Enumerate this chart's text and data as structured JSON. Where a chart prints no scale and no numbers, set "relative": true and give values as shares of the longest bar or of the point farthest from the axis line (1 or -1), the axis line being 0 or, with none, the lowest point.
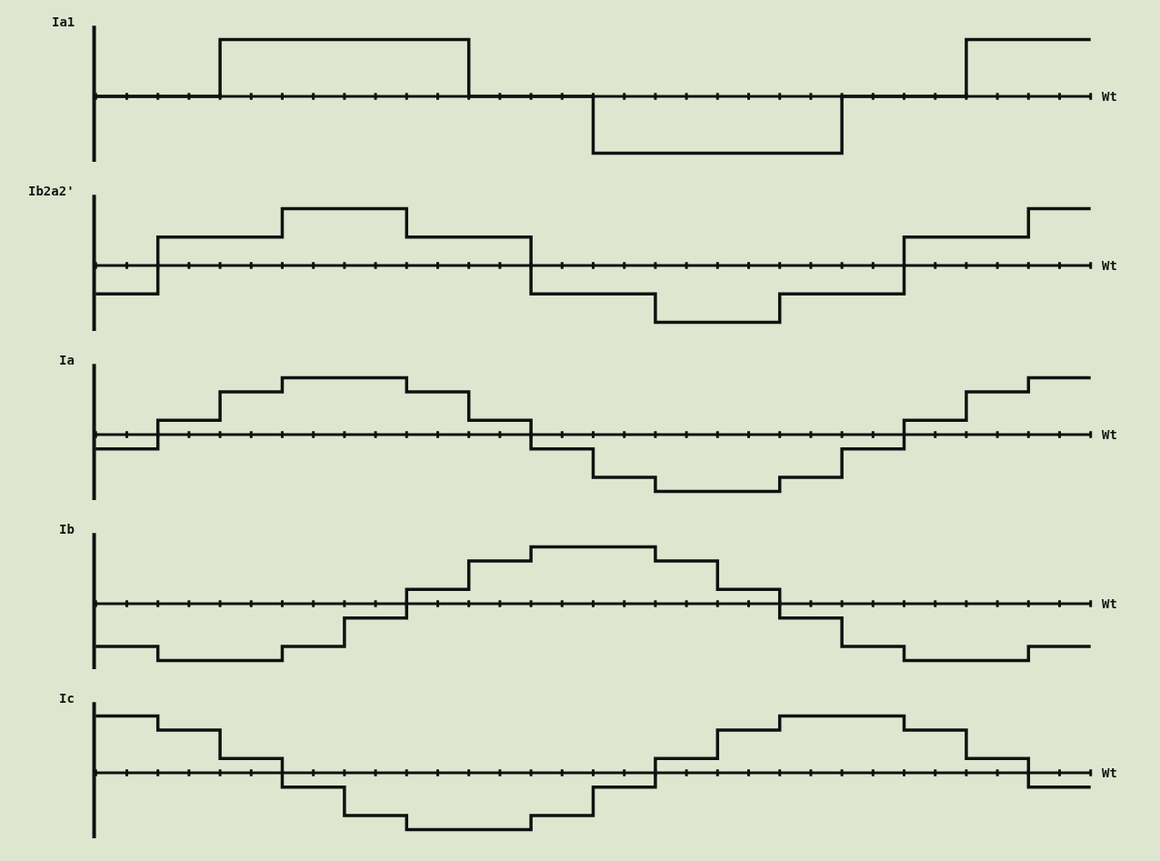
{
  "chart_data": [
    {
      "type": "step",
      "relative": true,
      "xlabel": "Wt",
      "ylabel": "Ia1",
      "marker": "none",
      "line_style": "solid",
      "categories": [
        null,
        null,
        null,
        null,
        null,
        null,
        null,
        null,
        null,
        null,
        null,
        null,
        null,
        null,
        null,
        null,
        null,
        null,
        null,
        null,
        null,
        null,
        null,
        null,
        null,
        null,
        null,
        null,
        null,
        null,
        null,
        null,
        null
      ],
      "series": [
        {
          "color": "#111111",
          "values": [
            0,
            0,
            0,
            0,
            1,
            1,
            1,
            1,
            1,
            1,
            1,
            1,
            0,
            0,
            0,
            0,
            -1,
            -1,
            -1,
            -1,
            -1,
            -1,
            -1,
            -1,
            0,
            0,
            0,
            0,
            1,
            1,
            1,
            1,
            1
          ]
        }
      ]
    },
    {
      "type": "step",
      "relative": true,
      "xlabel": "Wt",
      "ylabel": "Ib2a2'",
      "marker": "none",
      "line_style": "solid",
      "categories": [
        null,
        null,
        null,
        null,
        null,
        null,
        null,
        null,
        null,
        null,
        null,
        null,
        null,
        null,
        null,
        null,
        null,
        null,
        null,
        null,
        null,
        null,
        null,
        null,
        null,
        null,
        null,
        null,
        null,
        null,
        null,
        null,
        null
      ],
      "series": [
        {
          "color": "#111111",
          "values": [
            -0.5,
            -0.5,
            0.5,
            0.5,
            0.5,
            0.5,
            1,
            1,
            1,
            1,
            0.5,
            0.5,
            0.5,
            0.5,
            -0.5,
            -0.5,
            -0.5,
            -0.5,
            -1,
            -1,
            -1,
            -1,
            -0.5,
            -0.5,
            -0.5,
            -0.5,
            0.5,
            0.5,
            0.5,
            0.5,
            1,
            1,
            1
          ]
        }
      ]
    },
    {
      "type": "step",
      "relative": true,
      "xlabel": "Wt",
      "ylabel": "Ia",
      "marker": "none",
      "line_style": "solid",
      "categories": [
        null,
        null,
        null,
        null,
        null,
        null,
        null,
        null,
        null,
        null,
        null,
        null,
        null,
        null,
        null,
        null,
        null,
        null,
        null,
        null,
        null,
        null,
        null,
        null,
        null,
        null,
        null,
        null,
        null,
        null,
        null,
        null,
        null
      ],
      "series": [
        {
          "color": "#111111",
          "values": [
            -0.25,
            -0.25,
            0.25,
            0.25,
            0.75,
            0.75,
            1,
            1,
            1,
            1,
            0.75,
            0.75,
            0.25,
            0.25,
            -0.25,
            -0.25,
            -0.75,
            -0.75,
            -1,
            -1,
            -1,
            -1,
            -0.75,
            -0.75,
            -0.25,
            -0.25,
            0.25,
            0.25,
            0.75,
            0.75,
            1,
            1,
            1
          ]
        }
      ]
    },
    {
      "type": "step",
      "relative": true,
      "xlabel": "Wt",
      "ylabel": "Ib",
      "marker": "none",
      "line_style": "solid",
      "categories": [
        null,
        null,
        null,
        null,
        null,
        null,
        null,
        null,
        null,
        null,
        null,
        null,
        null,
        null,
        null,
        null,
        null,
        null,
        null,
        null,
        null,
        null,
        null,
        null,
        null,
        null,
        null,
        null,
        null,
        null,
        null,
        null,
        null
      ],
      "series": [
        {
          "color": "#111111",
          "values": [
            -0.75,
            -0.75,
            -1,
            -1,
            -1,
            -1,
            -0.75,
            -0.75,
            -0.25,
            -0.25,
            0.25,
            0.25,
            0.75,
            0.75,
            1,
            1,
            1,
            1,
            0.75,
            0.75,
            0.25,
            0.25,
            -0.25,
            -0.25,
            -0.75,
            -0.75,
            -1,
            -1,
            -1,
            -1,
            -0.75,
            -0.75,
            -0.75
          ]
        }
      ]
    },
    {
      "type": "step",
      "relative": true,
      "xlabel": "Wt",
      "ylabel": "Ic",
      "marker": "none",
      "line_style": "solid",
      "categories": [
        null,
        null,
        null,
        null,
        null,
        null,
        null,
        null,
        null,
        null,
        null,
        null,
        null,
        null,
        null,
        null,
        null,
        null,
        null,
        null,
        null,
        null,
        null,
        null,
        null,
        null,
        null,
        null,
        null,
        null,
        null,
        null,
        null
      ],
      "series": [
        {
          "color": "#111111",
          "values": [
            1,
            1,
            0.75,
            0.75,
            0.25,
            0.25,
            -0.25,
            -0.25,
            -0.75,
            -0.75,
            -1,
            -1,
            -1,
            -1,
            -0.75,
            -0.75,
            -0.25,
            -0.25,
            0.25,
            0.25,
            0.75,
            0.75,
            1,
            1,
            1,
            1,
            0.75,
            0.75,
            0.25,
            0.25,
            -0.25,
            -0.25,
            -0.25
          ]
        }
      ]
    }
  ]
}
